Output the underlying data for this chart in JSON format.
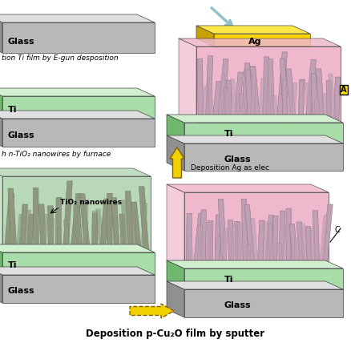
{
  "fig_width": 4.38,
  "fig_height": 4.38,
  "dpi": 100,
  "bg": "#ffffff",
  "glass_face": "#b8b8b8",
  "glass_top": "#e0e0e0",
  "glass_side": "#909090",
  "ti_face": "#a8dca8",
  "ti_top": "#d0f0d0",
  "ti_side": "#70b870",
  "nw_bg_left": "#b8d8b8",
  "nw_wire_left": "#909880",
  "nw_bg_right": "#f0b8cc",
  "nw_wire_right": "#c0a0b4",
  "nw_edge_left": "#607060",
  "nw_edge_right": "#806878",
  "ag_face": "#FFD700",
  "ag_top": "#FFE84A",
  "ag_side": "#C8A000",
  "arrow_yellow": "#F0D000",
  "arrow_blue": "#90C0CC",
  "label_glass": "Glass",
  "label_ti": "Ti",
  "label_tio2": "TiO₂ nanowires",
  "label_ag": "Ag",
  "label_step1": "tion Ti film by E-gun desposition",
  "label_step2": "h n-TiO₂ nanowires by furnace",
  "label_step3": "Deposition Ag as elec",
  "label_step4": "Deposition p-Cu₂O film by sputter"
}
